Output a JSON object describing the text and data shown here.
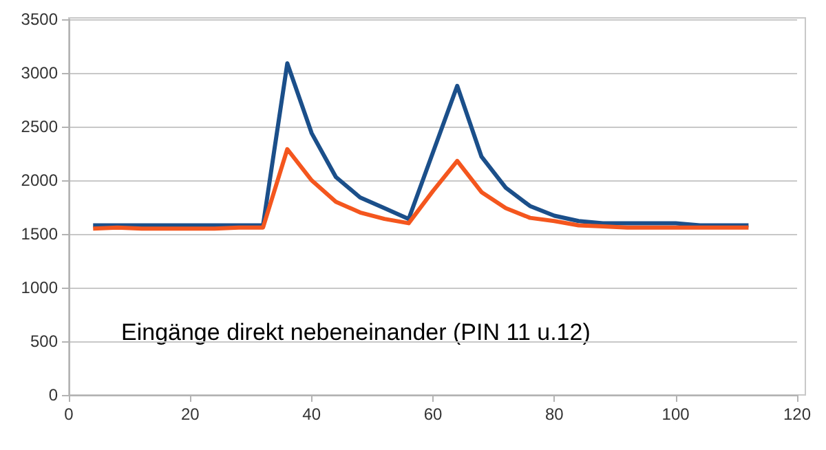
{
  "chart_data": {
    "type": "line",
    "x": [
      4,
      8,
      12,
      16,
      20,
      24,
      28,
      32,
      36,
      40,
      44,
      48,
      52,
      56,
      60,
      64,
      68,
      72,
      76,
      80,
      84,
      88,
      92,
      96,
      100,
      104,
      108,
      112
    ],
    "series": [
      {
        "color": "#1b4f8a",
        "values": [
          1580,
          1580,
          1580,
          1580,
          1580,
          1580,
          1580,
          1580,
          3090,
          2440,
          2030,
          1840,
          1740,
          1640,
          2260,
          2880,
          2220,
          1930,
          1760,
          1670,
          1620,
          1600,
          1600,
          1600,
          1600,
          1580,
          1580,
          1580
        ]
      },
      {
        "color": "#f4561e",
        "values": [
          1550,
          1560,
          1550,
          1550,
          1550,
          1550,
          1560,
          1560,
          2290,
          2000,
          1800,
          1700,
          1640,
          1600,
          1900,
          2180,
          1890,
          1740,
          1650,
          1620,
          1580,
          1570,
          1560,
          1560,
          1560,
          1560,
          1560,
          1560
        ]
      }
    ],
    "xlim": [
      0,
      120
    ],
    "xticks": [
      0,
      20,
      40,
      60,
      80,
      100,
      120
    ],
    "ylim": [
      0,
      3500
    ],
    "yticks": [
      0,
      500,
      1000,
      1500,
      2000,
      2500,
      3000,
      3500
    ],
    "grid": "y",
    "marker": "none",
    "line_style": "solid",
    "annotations": [
      "Eingänge direkt nebeneinander (PIN 11 u.12)"
    ]
  }
}
